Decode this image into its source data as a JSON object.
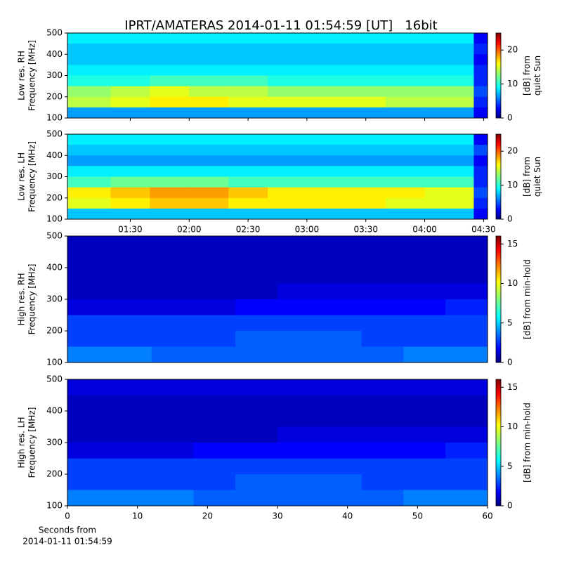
{
  "title": "IPRT/AMATERAS 2014-01-11 01:54:59 [UT]   16bit",
  "chart_data": [
    {
      "type": "heatmap",
      "ylabel": [
        "Low res. RH",
        "Frequency [MHz]"
      ],
      "xlim": [
        58,
        272
      ],
      "xticks": [
        90,
        120,
        150,
        180,
        210,
        240,
        270
      ],
      "show_xticklabels": false,
      "ylim": [
        100,
        500
      ],
      "yticks": [
        100,
        200,
        300,
        400,
        500
      ],
      "xbins": [
        58,
        80,
        100,
        120,
        140,
        160,
        180,
        200,
        220,
        240,
        265,
        272
      ],
      "ybins": [
        500,
        450,
        400,
        350,
        300,
        250,
        200,
        150,
        100
      ],
      "z": [
        [
          9,
          9,
          9,
          9,
          9,
          9,
          9,
          9,
          9,
          9,
          3
        ],
        [
          8,
          8,
          8,
          8,
          8,
          8,
          8,
          8,
          8,
          8,
          4
        ],
        [
          8,
          8,
          8,
          8,
          8,
          8,
          8,
          8,
          8,
          8,
          3
        ],
        [
          9,
          9,
          9,
          9,
          9,
          9,
          9,
          9,
          9,
          9,
          4
        ],
        [
          10,
          10,
          11,
          11,
          11,
          10,
          10,
          10,
          10,
          10,
          4
        ],
        [
          13,
          14,
          15,
          14,
          14,
          13,
          13,
          13,
          13,
          13,
          5
        ],
        [
          14,
          15,
          16,
          16,
          15,
          15,
          15,
          15,
          14,
          14,
          4
        ],
        [
          7,
          7,
          7,
          7,
          7,
          7,
          7,
          7,
          7,
          7,
          3
        ]
      ],
      "colorbar": {
        "label": [
          "[dB] from",
          "quiet Sun"
        ],
        "lim": [
          0,
          25
        ],
        "ticks": [
          0,
          10,
          20
        ]
      }
    },
    {
      "type": "heatmap",
      "ylabel": [
        "Low res. LH",
        "Frequency [MHz]"
      ],
      "xlim": [
        58,
        272
      ],
      "xticks": [
        {
          "value": 90,
          "label": "01:30"
        },
        {
          "value": 120,
          "label": "02:00"
        },
        {
          "value": 150,
          "label": "02:30"
        },
        {
          "value": 180,
          "label": "03:00"
        },
        {
          "value": 210,
          "label": "03:30"
        },
        {
          "value": 240,
          "label": "04:00"
        },
        {
          "value": 270,
          "label": "04:30"
        }
      ],
      "show_xticklabels": true,
      "ylim": [
        100,
        500
      ],
      "yticks": [
        100,
        200,
        300,
        400,
        500
      ],
      "xbins": [
        58,
        80,
        100,
        120,
        140,
        160,
        180,
        200,
        220,
        240,
        265,
        272
      ],
      "ybins": [
        500,
        450,
        400,
        350,
        300,
        250,
        200,
        150,
        100
      ],
      "z": [
        [
          9,
          9,
          9,
          9,
          9,
          9,
          9,
          9,
          9,
          9,
          3
        ],
        [
          8,
          8,
          8,
          8,
          8,
          8,
          8,
          8,
          8,
          8,
          5
        ],
        [
          7,
          7,
          7,
          7,
          7,
          7,
          7,
          7,
          7,
          7,
          3
        ],
        [
          9,
          9,
          9,
          9,
          9,
          9,
          9,
          9,
          9,
          9,
          4
        ],
        [
          11,
          12,
          12,
          12,
          11,
          11,
          11,
          11,
          11,
          11,
          4
        ],
        [
          16,
          17,
          18,
          18,
          17,
          16,
          16,
          16,
          16,
          15,
          5
        ],
        [
          15,
          16,
          17,
          17,
          16,
          16,
          16,
          16,
          15,
          15,
          4
        ],
        [
          8,
          8,
          8,
          8,
          8,
          8,
          8,
          8,
          8,
          8,
          3
        ]
      ],
      "colorbar": {
        "label": [
          "[dB] from",
          "quiet Sun"
        ],
        "lim": [
          0,
          25
        ],
        "ticks": [
          0,
          10,
          20
        ]
      }
    },
    {
      "type": "heatmap",
      "ylabel": [
        "High res. RH",
        "Frequency [MHz]"
      ],
      "xlim": [
        0,
        60
      ],
      "ylim": [
        100,
        500
      ],
      "yticks": [
        100,
        200,
        300,
        400,
        500
      ],
      "xbins": [
        0,
        6,
        12,
        18,
        24,
        30,
        36,
        42,
        48,
        54,
        60
      ],
      "ybins": [
        500,
        450,
        400,
        350,
        300,
        250,
        200,
        150,
        100
      ],
      "z": [
        [
          1,
          1,
          1,
          1,
          1,
          1,
          1,
          1,
          1,
          1
        ],
        [
          1,
          1,
          1,
          1,
          1,
          1,
          1,
          1,
          1,
          1
        ],
        [
          1,
          1,
          1,
          1,
          1,
          1,
          1,
          1,
          1,
          1
        ],
        [
          1,
          1,
          1,
          1,
          1,
          1.5,
          1.5,
          1.5,
          1.5,
          1.5
        ],
        [
          1.5,
          1.5,
          1.5,
          1.5,
          2,
          2,
          2,
          2,
          2,
          2.5
        ],
        [
          3,
          3,
          3,
          3,
          3,
          3,
          3,
          3,
          3,
          3
        ],
        [
          3,
          3,
          3,
          3,
          3.5,
          3.5,
          3.5,
          3,
          3,
          3
        ],
        [
          4,
          4,
          3.5,
          3.5,
          3.5,
          3.5,
          3.5,
          3.5,
          4,
          4
        ]
      ],
      "colorbar": {
        "label": [
          "[dB] from min-hold"
        ],
        "lim": [
          0,
          16
        ],
        "ticks": [
          0,
          5,
          10,
          15
        ]
      }
    },
    {
      "type": "heatmap",
      "ylabel": [
        "High res. LH",
        "Frequency [MHz]"
      ],
      "xlim": [
        0,
        60
      ],
      "xticks": [
        0,
        10,
        20,
        30,
        40,
        50,
        60
      ],
      "show_xticklabels": true,
      "xlabel": [
        "Seconds from",
        "2014-01-11 01:54:59"
      ],
      "ylim": [
        100,
        500
      ],
      "yticks": [
        100,
        200,
        300,
        400,
        500
      ],
      "xbins": [
        0,
        6,
        12,
        18,
        24,
        30,
        36,
        42,
        48,
        54,
        60
      ],
      "ybins": [
        500,
        450,
        400,
        350,
        300,
        250,
        200,
        150,
        100
      ],
      "z": [
        [
          1.5,
          1.5,
          1.5,
          1.5,
          1.5,
          1.5,
          1.5,
          1.5,
          1.5,
          1.5
        ],
        [
          1,
          1,
          1,
          1,
          1,
          1,
          1,
          1,
          1,
          1
        ],
        [
          1,
          1,
          1,
          1,
          1,
          1,
          1,
          1,
          1,
          1
        ],
        [
          1,
          1,
          1,
          1,
          1,
          1.5,
          1.5,
          1.5,
          1.5,
          1.5
        ],
        [
          1.5,
          1.5,
          1.5,
          2,
          2,
          2,
          2,
          2,
          2,
          2.5
        ],
        [
          3,
          3,
          3,
          3,
          3,
          3,
          3,
          3,
          3,
          3
        ],
        [
          3,
          3,
          3,
          3,
          3.5,
          3.5,
          3.5,
          3,
          3,
          3
        ],
        [
          4,
          4,
          4,
          3.5,
          3.5,
          3.5,
          3.5,
          3.5,
          4,
          4
        ]
      ],
      "colorbar": {
        "label": [
          "[dB] from min-hold"
        ],
        "lim": [
          0,
          16
        ],
        "ticks": [
          0,
          5,
          10,
          15
        ]
      }
    }
  ]
}
